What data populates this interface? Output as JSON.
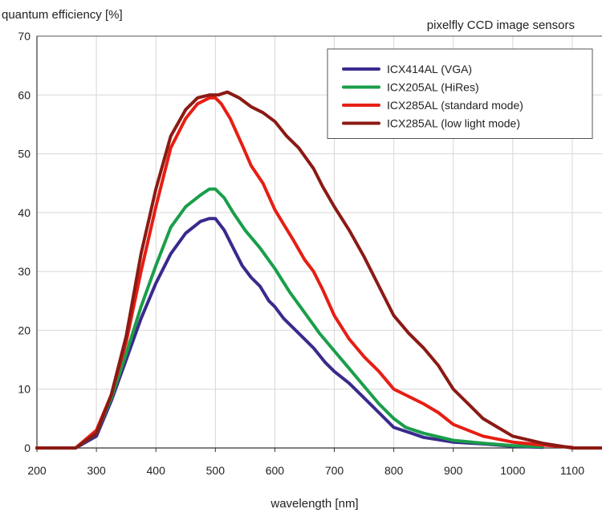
{
  "chart_data": {
    "type": "line",
    "ylabel": "quantum efficiency [%]",
    "title": "pixelfly CCD image sensors",
    "xlabel": "wavelength [nm]",
    "xlim": [
      200,
      1150
    ],
    "ylim": [
      0,
      70
    ],
    "xticks": [
      200,
      300,
      400,
      500,
      600,
      700,
      800,
      900,
      1000,
      1100
    ],
    "yticks": [
      0,
      10,
      20,
      30,
      40,
      50,
      60,
      70
    ],
    "grid": true,
    "legend": "top-right",
    "series": [
      {
        "name": "ICX414AL (VGA)",
        "color": "#3a2a8c",
        "points": [
          [
            200,
            0
          ],
          [
            265,
            0
          ],
          [
            300,
            2
          ],
          [
            325,
            8
          ],
          [
            350,
            15
          ],
          [
            375,
            22
          ],
          [
            400,
            28
          ],
          [
            425,
            33
          ],
          [
            450,
            36.5
          ],
          [
            475,
            38.5
          ],
          [
            490,
            39
          ],
          [
            500,
            39
          ],
          [
            515,
            37
          ],
          [
            530,
            34
          ],
          [
            545,
            31
          ],
          [
            560,
            29
          ],
          [
            575,
            27.5
          ],
          [
            590,
            25
          ],
          [
            600,
            24
          ],
          [
            615,
            22
          ],
          [
            630,
            20.5
          ],
          [
            650,
            18.5
          ],
          [
            665,
            17
          ],
          [
            685,
            14.5
          ],
          [
            700,
            13
          ],
          [
            725,
            11
          ],
          [
            750,
            8.5
          ],
          [
            775,
            6
          ],
          [
            800,
            3.5
          ],
          [
            830,
            2.5
          ],
          [
            850,
            1.8
          ],
          [
            900,
            1
          ],
          [
            950,
            0.7
          ],
          [
            1000,
            0.3
          ],
          [
            1050,
            0.1
          ]
        ]
      },
      {
        "name": "ICX205AL (HiRes)",
        "color": "#1a9e4a",
        "points": [
          [
            200,
            0
          ],
          [
            265,
            0
          ],
          [
            300,
            2.5
          ],
          [
            325,
            8.5
          ],
          [
            350,
            16
          ],
          [
            375,
            24
          ],
          [
            400,
            31
          ],
          [
            425,
            37.5
          ],
          [
            450,
            41
          ],
          [
            475,
            43
          ],
          [
            490,
            44
          ],
          [
            500,
            44
          ],
          [
            515,
            42.5
          ],
          [
            530,
            40
          ],
          [
            550,
            37
          ],
          [
            575,
            34
          ],
          [
            600,
            30.5
          ],
          [
            625,
            26.5
          ],
          [
            650,
            23
          ],
          [
            675,
            19.5
          ],
          [
            700,
            16.5
          ],
          [
            725,
            13.5
          ],
          [
            750,
            10.5
          ],
          [
            775,
            7.5
          ],
          [
            800,
            5
          ],
          [
            820,
            3.5
          ],
          [
            850,
            2.5
          ],
          [
            900,
            1.3
          ],
          [
            950,
            0.8
          ],
          [
            1000,
            0.4
          ],
          [
            1050,
            0.2
          ]
        ]
      },
      {
        "name": "ICX285AL (standard mode)",
        "color": "#e61e14",
        "points": [
          [
            200,
            0
          ],
          [
            265,
            0
          ],
          [
            300,
            3
          ],
          [
            325,
            9
          ],
          [
            350,
            18
          ],
          [
            375,
            30
          ],
          [
            400,
            41
          ],
          [
            425,
            51
          ],
          [
            450,
            56
          ],
          [
            470,
            58.5
          ],
          [
            490,
            59.5
          ],
          [
            500,
            59.5
          ],
          [
            510,
            58.5
          ],
          [
            525,
            56
          ],
          [
            545,
            51.5
          ],
          [
            560,
            48
          ],
          [
            580,
            45
          ],
          [
            600,
            40.5
          ],
          [
            615,
            38
          ],
          [
            630,
            35.5
          ],
          [
            650,
            32
          ],
          [
            665,
            30
          ],
          [
            680,
            27
          ],
          [
            700,
            22.5
          ],
          [
            725,
            18.5
          ],
          [
            750,
            15.5
          ],
          [
            775,
            13
          ],
          [
            800,
            10
          ],
          [
            820,
            9
          ],
          [
            850,
            7.5
          ],
          [
            875,
            6
          ],
          [
            900,
            4
          ],
          [
            950,
            2
          ],
          [
            1000,
            1
          ],
          [
            1050,
            0.5
          ],
          [
            1100,
            0.1
          ]
        ]
      },
      {
        "name": "ICX285AL (low light mode)",
        "color": "#8b1a14",
        "points": [
          [
            200,
            0
          ],
          [
            265,
            0
          ],
          [
            300,
            2.5
          ],
          [
            325,
            9
          ],
          [
            350,
            19
          ],
          [
            375,
            33
          ],
          [
            400,
            44
          ],
          [
            425,
            53
          ],
          [
            450,
            57.5
          ],
          [
            470,
            59.5
          ],
          [
            490,
            60
          ],
          [
            505,
            60
          ],
          [
            520,
            60.5
          ],
          [
            540,
            59.5
          ],
          [
            560,
            58
          ],
          [
            580,
            57
          ],
          [
            600,
            55.5
          ],
          [
            620,
            53
          ],
          [
            640,
            51
          ],
          [
            665,
            47.5
          ],
          [
            680,
            44.5
          ],
          [
            700,
            41
          ],
          [
            725,
            37
          ],
          [
            750,
            32.5
          ],
          [
            775,
            27.5
          ],
          [
            800,
            22.5
          ],
          [
            825,
            19.5
          ],
          [
            850,
            17
          ],
          [
            875,
            14
          ],
          [
            900,
            10
          ],
          [
            925,
            7.5
          ],
          [
            950,
            5
          ],
          [
            975,
            3.5
          ],
          [
            1000,
            2
          ],
          [
            1050,
            0.8
          ],
          [
            1100,
            0
          ],
          [
            1150,
            0
          ]
        ]
      }
    ]
  }
}
